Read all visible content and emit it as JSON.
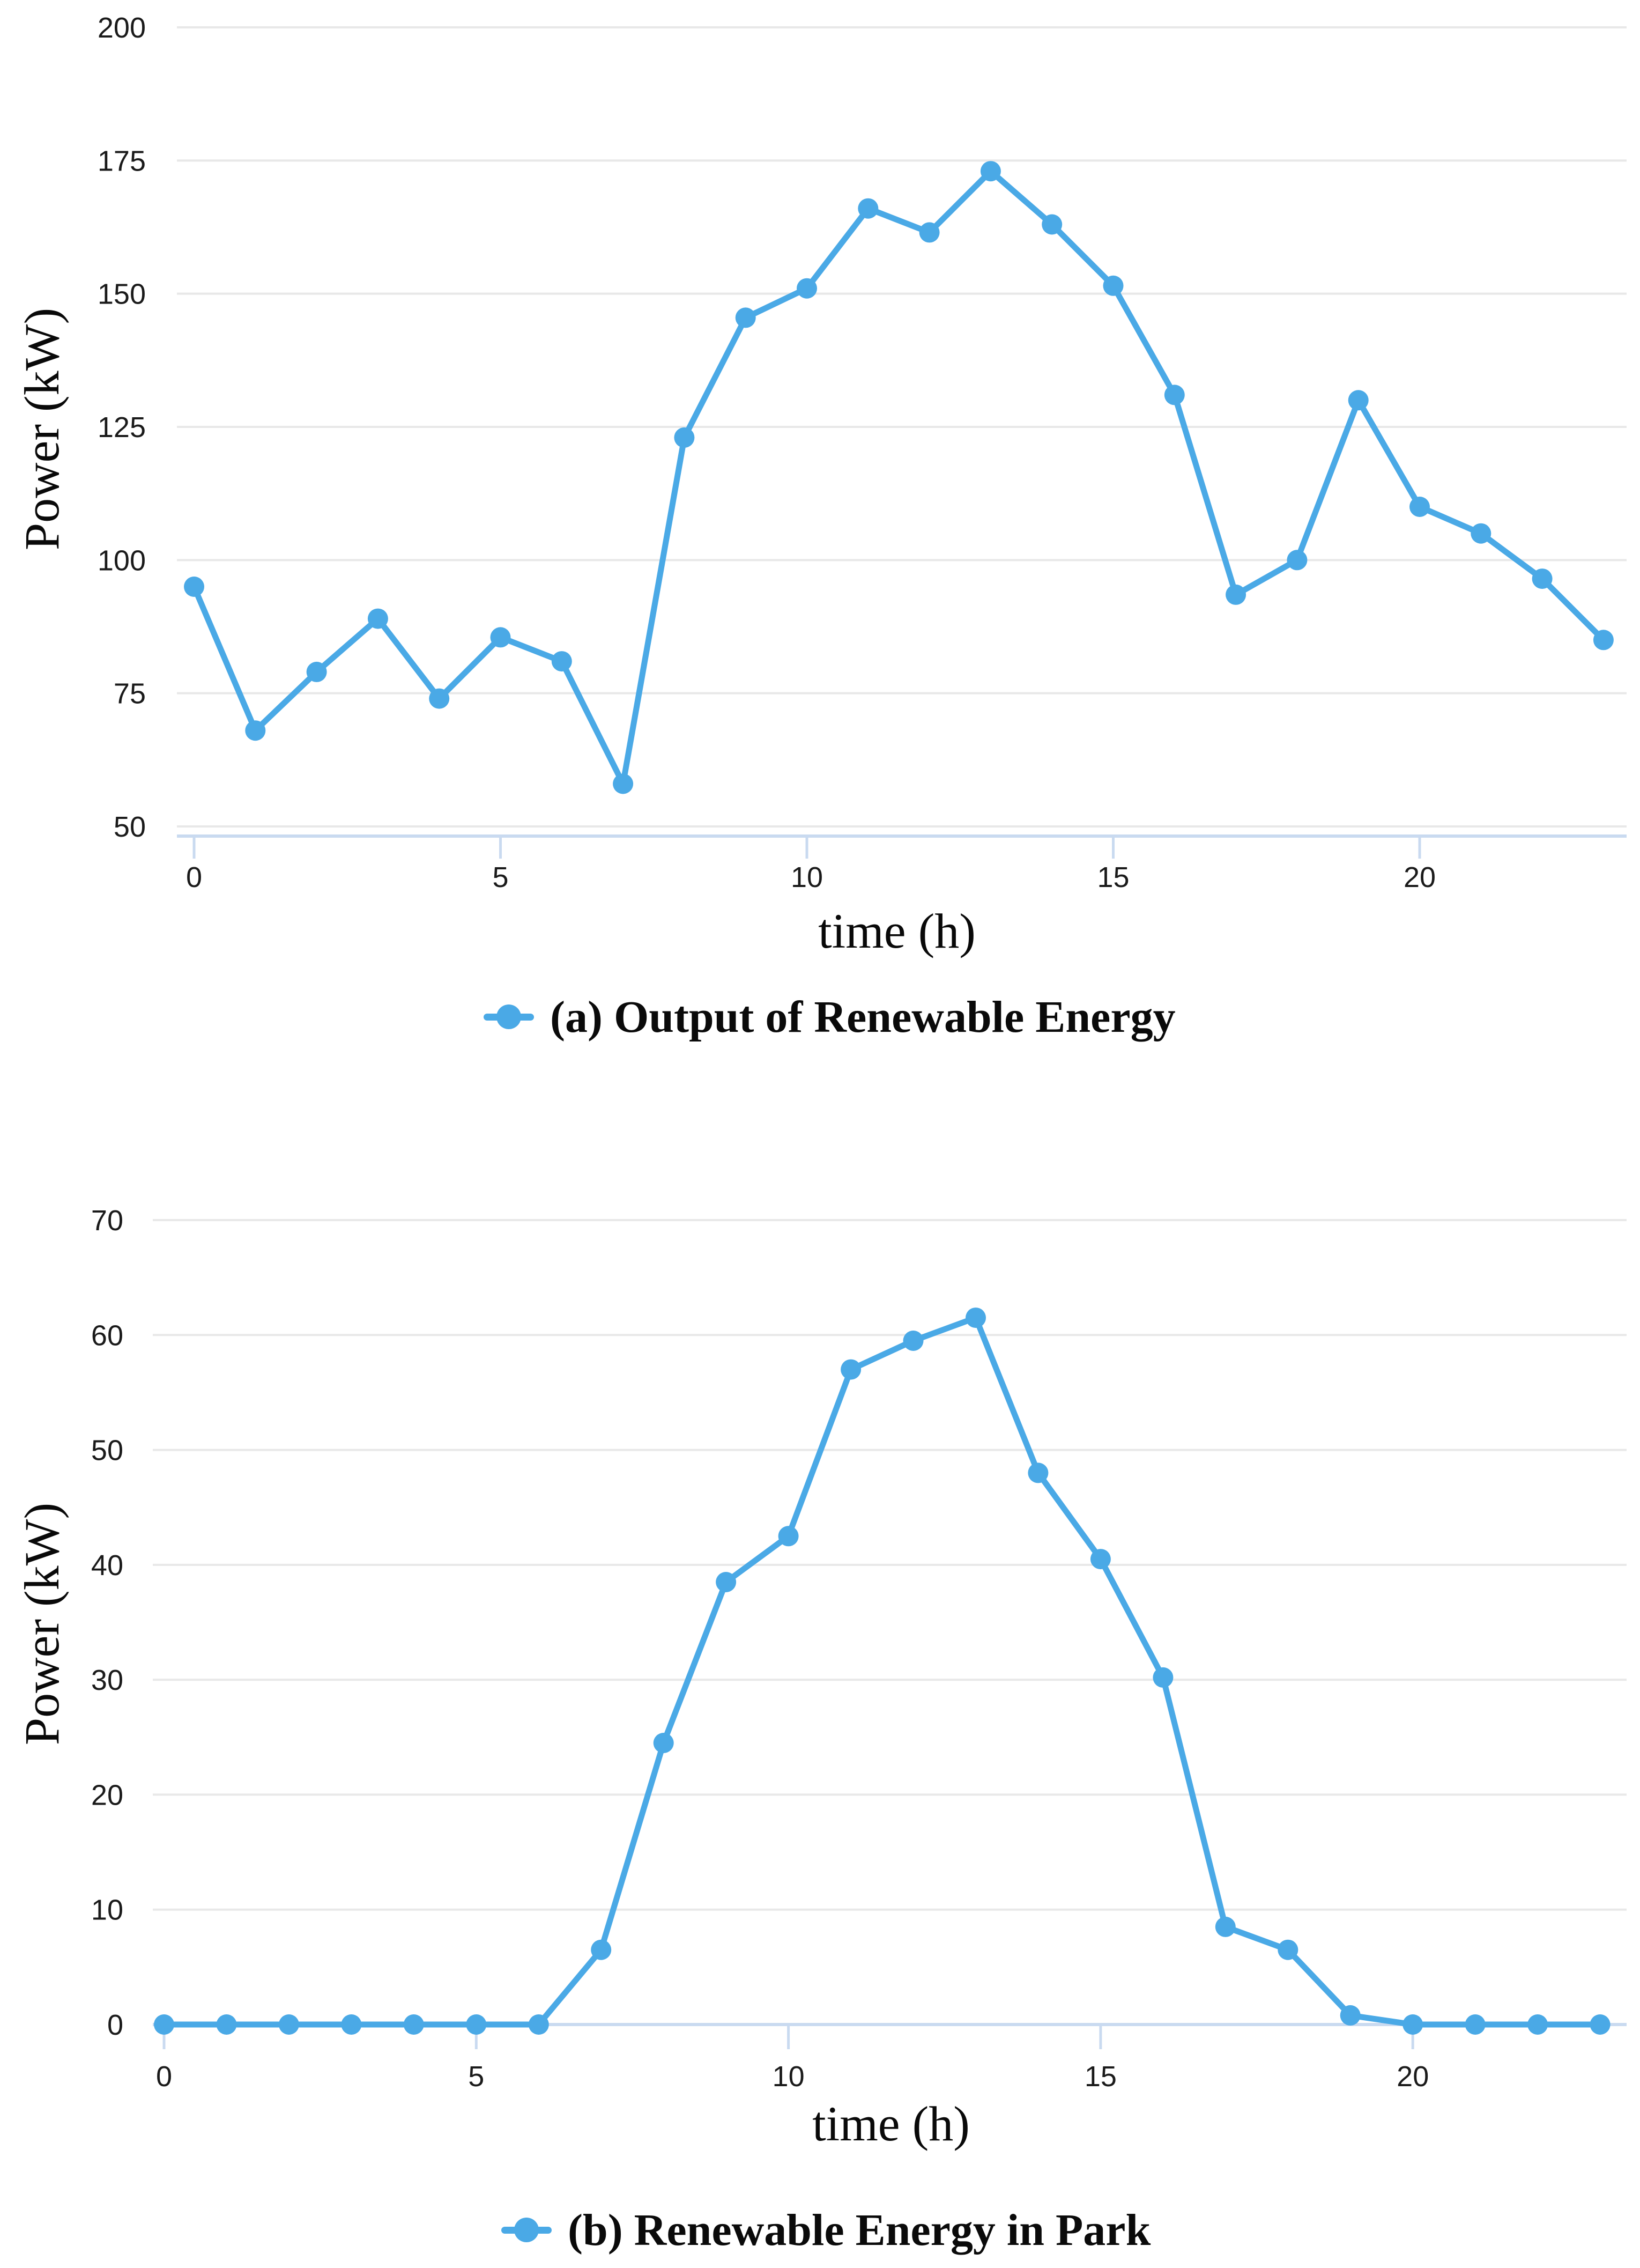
{
  "figure": {
    "background": "#ffffff",
    "description_visible_text_only": true
  },
  "colors": {
    "line": "#4AA9E6",
    "marker": "#4AA9E6",
    "grid": "#E8E8E8",
    "axis": "#C9DAF0",
    "tick_text": "#1a1a1a",
    "title_text": "#090909"
  },
  "chart_data": [
    {
      "type": "line",
      "legend": "(a) Output of Renewable Energy",
      "xlabel": "time (h)",
      "ylabel": "Power (kW)",
      "x": [
        0,
        1,
        2,
        3,
        4,
        5,
        6,
        7,
        8,
        9,
        10,
        11,
        12,
        13,
        14,
        15,
        16,
        17,
        18,
        19,
        20,
        21,
        22,
        23
      ],
      "values": [
        95,
        68,
        79,
        89,
        74,
        85.5,
        81,
        58,
        123,
        145.5,
        151,
        166,
        161.5,
        173,
        163,
        151.5,
        131,
        93.5,
        100,
        130,
        110,
        105,
        96.5,
        85
      ],
      "ylim": [
        50,
        200
      ],
      "ytick_step": 25,
      "yticks": [
        200,
        175,
        150,
        125,
        100,
        75,
        50
      ],
      "xticks": [
        0,
        5,
        10,
        15,
        20
      ],
      "grid": "horizontal-only",
      "legend_position": "bottom-center",
      "marker": "circle"
    },
    {
      "type": "line",
      "legend": "(b) Renewable Energy in Park",
      "xlabel": "time (h)",
      "ylabel": "Power (kW)",
      "x": [
        0,
        1,
        2,
        3,
        4,
        5,
        6,
        7,
        8,
        9,
        10,
        11,
        12,
        13,
        14,
        15,
        16,
        17,
        18,
        19,
        20,
        21,
        22,
        23
      ],
      "values": [
        0,
        0,
        0,
        0,
        0,
        0,
        0,
        6.5,
        24.5,
        38.5,
        42.5,
        57,
        59.5,
        61.5,
        48,
        40.5,
        30.2,
        8.5,
        6.5,
        0.8,
        0,
        0,
        0,
        0
      ],
      "ylim": [
        0,
        70
      ],
      "ytick_step": 10,
      "yticks": [
        70,
        60,
        50,
        40,
        30,
        20,
        10,
        0
      ],
      "xticks": [
        0,
        5,
        10,
        15,
        20
      ],
      "grid": "horizontal-only",
      "legend_position": "bottom-center",
      "marker": "circle"
    }
  ]
}
